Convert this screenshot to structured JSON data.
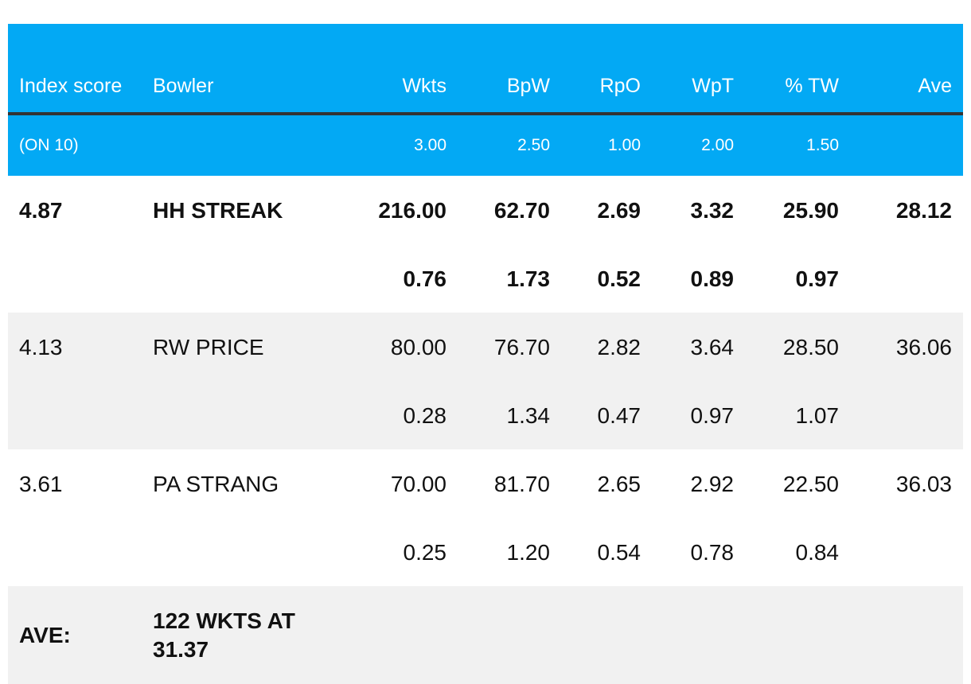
{
  "header": {
    "index_score": "Index score",
    "bowler": "Bowler",
    "wkts": "Wkts",
    "bpw": "BpW",
    "rpo": "RpO",
    "wpt": "WpT",
    "tw": "% TW",
    "ave": "Ave"
  },
  "weights": {
    "label": "(ON 10)",
    "wkts": "3.00",
    "bpw": "2.50",
    "rpo": "1.00",
    "wpt": "2.00",
    "tw": "1.50"
  },
  "rows": [
    {
      "index": "4.87",
      "bowler": "HH STREAK",
      "wkts": "216.00",
      "bpw": "62.70",
      "rpo": "2.69",
      "wpt": "3.32",
      "tw": "25.90",
      "ave": "28.12",
      "sub": {
        "wkts": "0.76",
        "bpw": "1.73",
        "rpo": "0.52",
        "wpt": "0.89",
        "tw": "0.97"
      }
    },
    {
      "index": "4.13",
      "bowler": "RW PRICE",
      "wkts": "80.00",
      "bpw": "76.70",
      "rpo": "2.82",
      "wpt": "3.64",
      "tw": "28.50",
      "ave": "36.06",
      "sub": {
        "wkts": "0.28",
        "bpw": "1.34",
        "rpo": "0.47",
        "wpt": "0.97",
        "tw": "1.07"
      }
    },
    {
      "index": "3.61",
      "bowler": "PA STRANG",
      "wkts": "70.00",
      "bpw": "81.70",
      "rpo": "2.65",
      "wpt": "2.92",
      "tw": "22.50",
      "ave": "36.03",
      "sub": {
        "wkts": "0.25",
        "bpw": "1.20",
        "rpo": "0.54",
        "wpt": "0.78",
        "tw": "0.84"
      }
    }
  ],
  "footer": {
    "label": "AVE:",
    "summary": "122 WKTS AT 31.37"
  },
  "colors": {
    "header_bg": "#03a9f4",
    "header_text": "#ffffff",
    "shaded_row": "#f1f1f1",
    "header_rule": "#333333"
  }
}
